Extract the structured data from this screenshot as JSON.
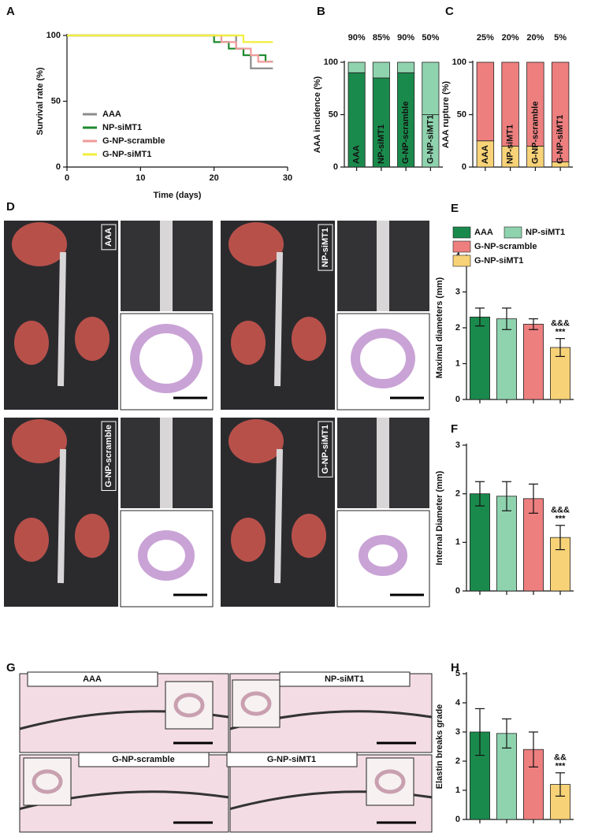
{
  "chart_data": [
    {
      "panel": "A",
      "type": "line",
      "step": true,
      "xlabel": "Time (days)",
      "ylabel": "Survival rate (%)",
      "x": [
        0,
        20,
        21,
        22,
        23,
        24,
        25,
        26,
        27,
        28
      ],
      "series": [
        {
          "name": "AAA",
          "color": "#8c8c8c",
          "values": [
            100,
            100,
            100,
            100,
            90,
            85,
            75,
            75,
            75,
            75
          ]
        },
        {
          "name": "NP-siMT1",
          "color": "#1f8a2e",
          "values": [
            100,
            95,
            95,
            90,
            90,
            85,
            85,
            85,
            80,
            80
          ]
        },
        {
          "name": "G-NP-scramble",
          "color": "#f09a9a",
          "values": [
            100,
            100,
            95,
            95,
            90,
            90,
            85,
            80,
            80,
            80
          ]
        },
        {
          "name": "G-NP-siMT1",
          "color": "#f2ee3a",
          "values": [
            100,
            100,
            100,
            100,
            100,
            95,
            95,
            95,
            95,
            95
          ]
        }
      ],
      "xlim": [
        0,
        30
      ],
      "xticks": [
        0,
        10,
        20,
        30
      ],
      "ylim": [
        0,
        100
      ],
      "yticks": [
        0,
        50,
        100
      ]
    },
    {
      "panel": "B",
      "type": "stacked_bar",
      "ylabel": "AAA incidence (%)",
      "categories": [
        "AAA",
        "NP-siMT1",
        "G-NP-scramble",
        "G-NP-siMT1"
      ],
      "series": [
        {
          "colors": [
            "#1a8a4c",
            "#1a8a4c",
            "#1a8a4c",
            "#8fd3ae"
          ],
          "values": [
            90,
            85,
            90,
            50
          ],
          "value_labels": [
            "90%",
            "85%",
            "90%",
            "50%"
          ]
        },
        {
          "colors": [
            "#8fd3ae",
            "#8fd3ae",
            "#8fd3ae",
            "#8fd3ae"
          ],
          "values": [
            10,
            15,
            10,
            50
          ]
        }
      ],
      "ylim": [
        0,
        100
      ],
      "yticks": [
        0,
        50,
        100
      ]
    },
    {
      "panel": "C",
      "type": "stacked_bar",
      "ylabel": "AAA rupture (%)",
      "categories": [
        "AAA",
        "NP-siMT1",
        "G-NP-scramble",
        "G-NP-siMT1"
      ],
      "series": [
        {
          "colors": [
            "#f7d277",
            "#f7d277",
            "#f7d277",
            "#f7d277"
          ],
          "values": [
            25,
            20,
            20,
            5
          ],
          "value_labels": [
            "25%",
            "20%",
            "20%",
            "5%"
          ]
        },
        {
          "colors": [
            "#ee7f7f",
            "#ee7f7f",
            "#ee7f7f",
            "#ee7f7f"
          ],
          "values": [
            75,
            80,
            80,
            95
          ]
        }
      ],
      "ylim": [
        0,
        100
      ],
      "yticks": [
        0,
        50,
        100
      ]
    },
    {
      "panel": "E",
      "type": "bar",
      "ylabel": "Maximal diameters (mm)",
      "categories": [
        "AAA",
        "NP-siMT1",
        "G-NP-scramble",
        "G-NP-siMT1"
      ],
      "colors": [
        "#1a8a4c",
        "#8fd3ae",
        "#ee7f7f",
        "#f7d277"
      ],
      "values": [
        2.3,
        2.25,
        2.1,
        1.45
      ],
      "errors": [
        0.25,
        0.3,
        0.15,
        0.25
      ],
      "annotations": [
        "&&&",
        "***"
      ],
      "ylim": [
        0,
        4
      ],
      "yticks": [
        0,
        1,
        2,
        3,
        4
      ]
    },
    {
      "panel": "F",
      "type": "bar",
      "ylabel": "Internal Diameter (mm)",
      "categories": [
        "AAA",
        "NP-siMT1",
        "G-NP-scramble",
        "G-NP-siMT1"
      ],
      "colors": [
        "#1a8a4c",
        "#8fd3ae",
        "#ee7f7f",
        "#f7d277"
      ],
      "values": [
        2.0,
        1.95,
        1.9,
        1.1
      ],
      "errors": [
        0.25,
        0.3,
        0.3,
        0.25
      ],
      "annotations": [
        "&&&",
        "***"
      ],
      "ylim": [
        0,
        3
      ],
      "yticks": [
        0,
        1,
        2,
        3
      ]
    },
    {
      "panel": "H",
      "type": "bar",
      "ylabel": "Elastin breaks grade",
      "categories": [
        "AAA",
        "NP-siMT1",
        "G-NP-scramble",
        "G-NP-siMT1"
      ],
      "colors": [
        "#1a8a4c",
        "#8fd3ae",
        "#ee7f7f",
        "#f7d277"
      ],
      "values": [
        3.0,
        2.95,
        2.4,
        1.2
      ],
      "errors": [
        0.8,
        0.5,
        0.6,
        0.4
      ],
      "annotations": [
        "&&",
        "***"
      ],
      "ylim": [
        0,
        5
      ],
      "yticks": [
        0,
        1,
        2,
        3,
        4,
        5
      ]
    }
  ],
  "images": [
    {
      "panel": "D",
      "labels": [
        "AAA",
        "NP-siMT1",
        "G-NP-scramble",
        "G-NP-siMT1"
      ]
    },
    {
      "panel": "G",
      "labels": [
        "AAA",
        "NP-siMT1",
        "G-NP-scramble",
        "G-NP-siMT1"
      ]
    }
  ]
}
